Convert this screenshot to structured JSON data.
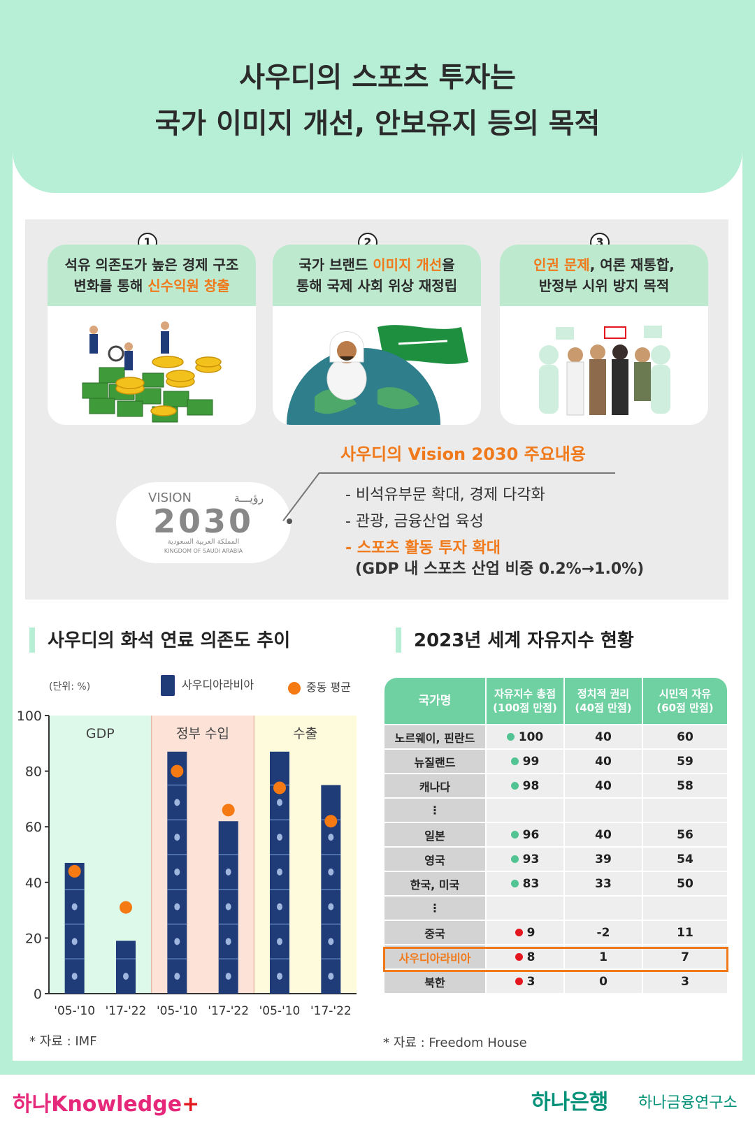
{
  "title": {
    "line1": "사우디의 스포츠 투자는",
    "line2": "국가 이미지 개선, 안보유지 등의 목적"
  },
  "cards": [
    {
      "number": "1",
      "text_a": "석유 의존도가 높은 경제 구조",
      "text_b1": "변화를 통해 ",
      "text_b_hl": "신수익원 창출",
      "text_b2": ""
    },
    {
      "number": "2",
      "text_a1": "국가 브랜드 ",
      "text_a_hl": "이미지 개선",
      "text_a2": "을",
      "text_b": "통해 국제 사회 위상 재정립"
    },
    {
      "number": "3",
      "text_a_hl": "인권 문제",
      "text_a2": ", 여론 재통합,",
      "text_b": "반정부 시위 방지 목적"
    }
  ],
  "vision": {
    "title": "사우디의 Vision 2030 주요내용",
    "items": [
      "- 비석유부문 확대, 경제 다각화",
      "- 관광, 금융산업 육성"
    ],
    "highlight": "- 스포츠 활동 투자 확대",
    "sub": "(GDP 내 스포츠 산업 비중 0.2%→1.0%)",
    "logo_vision": "VISION",
    "logo_arabic": "رؤيـــة",
    "logo_year": "2030",
    "logo_arabic2": "المملكة العربية السعودية",
    "logo_kingdom": "KINGDOM OF SAUDI ARABIA"
  },
  "chart_section": {
    "title": "사우디의 화석 연료 의존도 추이",
    "unit": "(단위: %)",
    "legend_saudi": "사우디아라비아",
    "legend_me": "중동 평균",
    "source": "* 자료 :  IMF"
  },
  "chart_data": {
    "type": "bar",
    "groups": [
      {
        "name": "GDP",
        "color": "#dcf9ea"
      },
      {
        "name": "정부 수입",
        "color": "#fde3d7"
      },
      {
        "name": "수출",
        "color": "#fefbdc"
      }
    ],
    "categories": [
      "'05-'10",
      "'17-'22",
      "'05-'10",
      "'17-'22",
      "'05-'10",
      "'17-'22"
    ],
    "series": [
      {
        "name": "사우디아라비아",
        "type": "bar",
        "values": [
          47,
          19,
          87,
          62,
          87,
          75
        ],
        "color": "#1f3c78"
      },
      {
        "name": "중동 평균",
        "type": "scatter",
        "values": [
          44,
          31,
          80,
          66,
          74,
          62
        ],
        "color": "#f57a14"
      }
    ],
    "yticks": [
      0,
      20,
      40,
      60,
      80,
      100
    ],
    "ylim": [
      0,
      100
    ]
  },
  "table_section": {
    "title": "2023년 세계 자유지수 현황",
    "headers": [
      "국가명",
      "자유지수 총점\n(100점 만점)",
      "정치적 권리\n(40점 만점)",
      "시민적 자유\n(60점 만점)"
    ],
    "rows": [
      {
        "name": "노르웨이, 핀란드",
        "total": "100",
        "dot": "g",
        "pol": "40",
        "civ": "60"
      },
      {
        "name": "뉴질랜드",
        "total": "99",
        "dot": "g",
        "pol": "40",
        "civ": "59"
      },
      {
        "name": "캐나다",
        "total": "98",
        "dot": "g",
        "pol": "40",
        "civ": "58"
      },
      {
        "name": "⋮",
        "total": "",
        "dot": "",
        "pol": "",
        "civ": ""
      },
      {
        "name": "일본",
        "total": "96",
        "dot": "g",
        "pol": "40",
        "civ": "56"
      },
      {
        "name": "영국",
        "total": "93",
        "dot": "g",
        "pol": "39",
        "civ": "54"
      },
      {
        "name": "한국, 미국",
        "total": "83",
        "dot": "g",
        "pol": "33",
        "civ": "50"
      },
      {
        "name": "⋮",
        "total": "",
        "dot": "",
        "pol": "",
        "civ": ""
      },
      {
        "name": "중국",
        "total": "9",
        "dot": "r",
        "pol": "-2",
        "civ": "11"
      },
      {
        "name": "사우디아라비아",
        "total": "8",
        "dot": "r",
        "pol": "1",
        "civ": "7"
      },
      {
        "name": "북한",
        "total": "3",
        "dot": "r",
        "pol": "0",
        "civ": "3"
      }
    ],
    "highlight_row": "사우디아라비아",
    "source": "* 자료 : Freedom House"
  },
  "footer": {
    "left": "하나Knowledge",
    "left_plus": "+",
    "right_brand": "하나은행",
    "right_sub": "하나금융연구소"
  },
  "colors": {
    "mint": "#b7eed6",
    "orange": "#f07a1b",
    "table_header": "#6fd0a2",
    "green_dot": "#52c493",
    "red_dot": "#e4161e"
  }
}
